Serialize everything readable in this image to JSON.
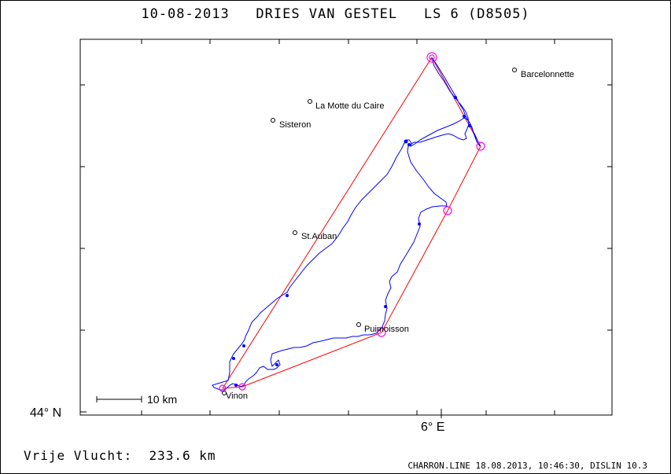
{
  "title": "10-08-2013   DRIES VAN GESTEL   LS 6 (D8505)",
  "axis": {
    "lat_label": "44° N",
    "lon_label": "6° E"
  },
  "scale_bar_label": "10 km",
  "footer": {
    "distance": "Vrije Vlucht:  233.6 km",
    "source": "CHARRON.LINE 18.08.2013, 10:46:30, DISLIN 10.3"
  },
  "places": [
    {
      "name": "Barcelonnette"
    },
    {
      "name": "La Motte du Caire"
    },
    {
      "name": "Sisteron"
    },
    {
      "name": "St.Auban"
    },
    {
      "name": "Puimoisson"
    },
    {
      "name": "Vinon"
    }
  ],
  "colors": {
    "track": "#0000ff",
    "task_line": "#ff0000",
    "turnpoint_marker": "#ff00ff",
    "frame": "#000000"
  }
}
